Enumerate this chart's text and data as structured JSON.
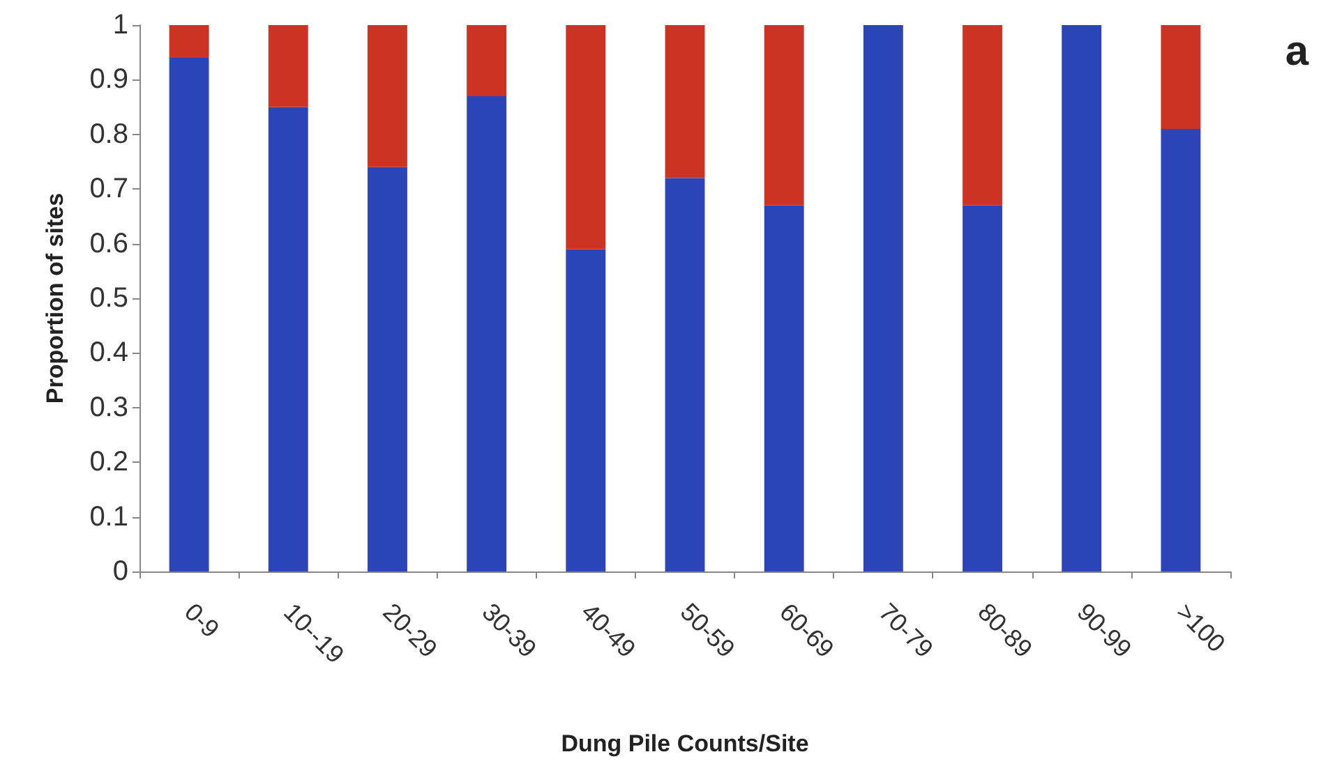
{
  "chart_data": {
    "type": "bar",
    "stacked": true,
    "xlabel": "Dung Pile Counts/Site",
    "ylabel": "Proportion of sites",
    "annotations": [
      "a"
    ],
    "categories": [
      "0-9",
      "10--19",
      "20-29",
      "30-39",
      "40-49",
      "50-59",
      "60-69",
      "70-79",
      "80-89",
      "90-99",
      ">100"
    ],
    "series": [
      {
        "color": "#2b44b8",
        "values": [
          0.94,
          0.85,
          0.74,
          0.87,
          0.59,
          0.72,
          0.67,
          1,
          0.67,
          1,
          0.81
        ]
      },
      {
        "color": "#cc3322",
        "values": [
          0.06,
          0.15,
          0.26,
          0.13,
          0.41,
          0.28,
          0.33,
          0,
          0.33,
          0,
          0.19
        ]
      }
    ],
    "ylim": [
      0,
      1
    ],
    "yticks": [
      0,
      0.1,
      0.2,
      0.3,
      0.4,
      0.5,
      0.6,
      0.7,
      0.8,
      0.9,
      1
    ],
    "grid": false
  }
}
